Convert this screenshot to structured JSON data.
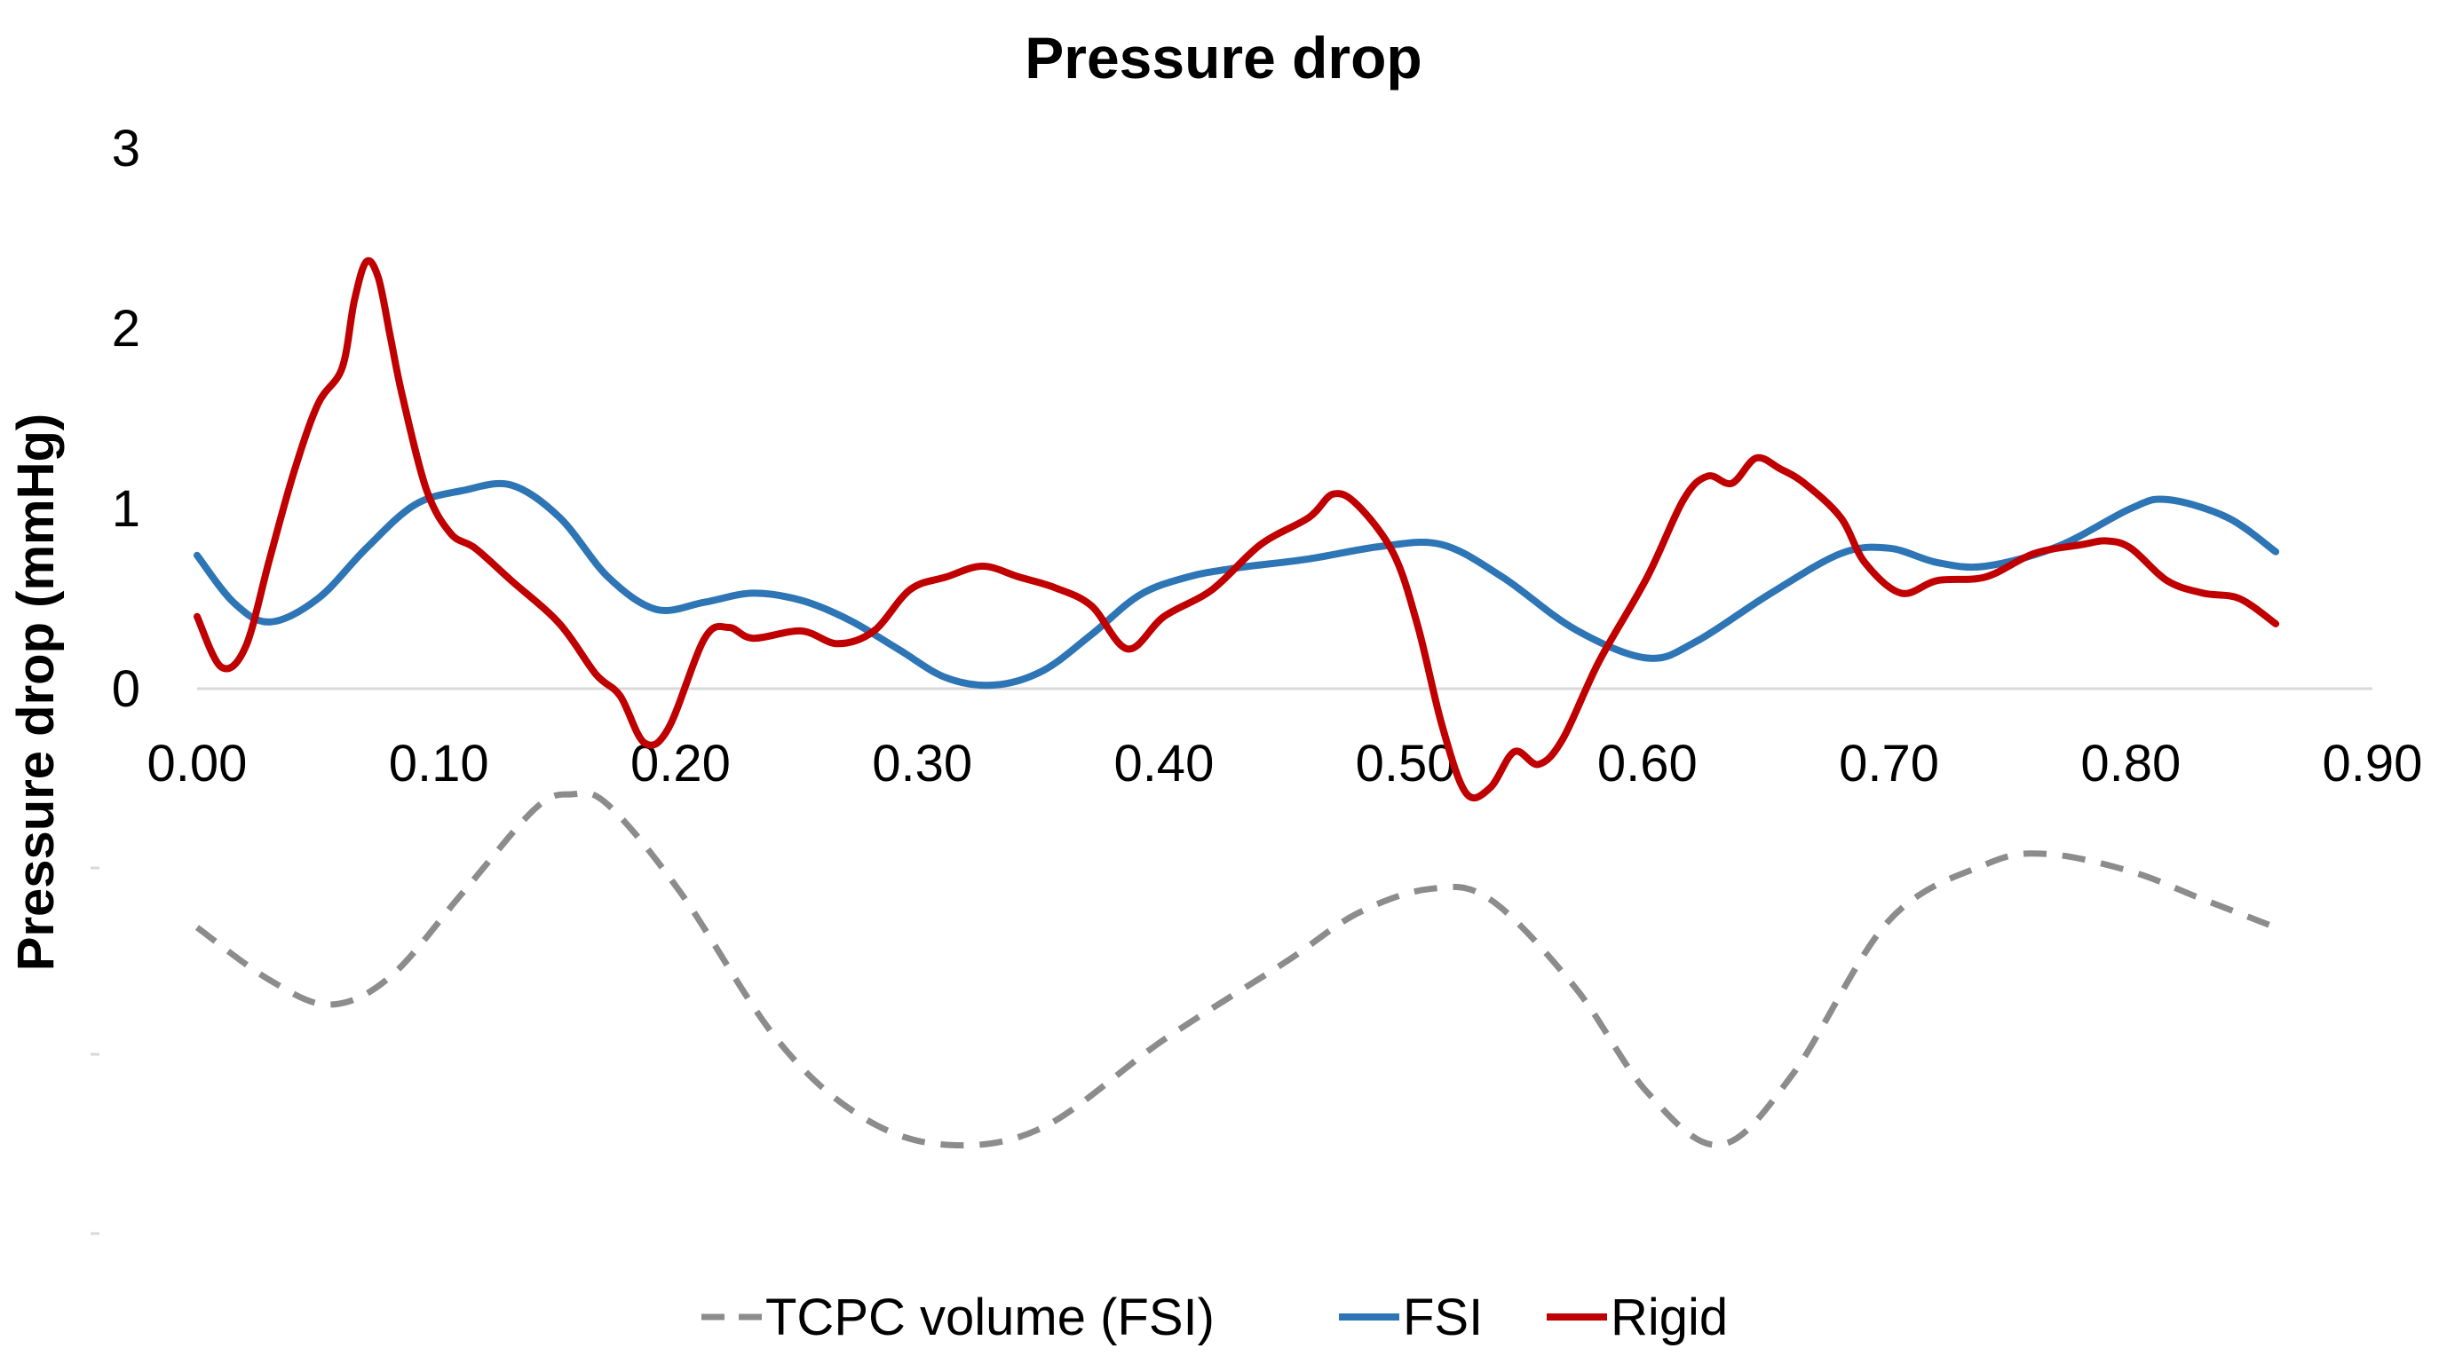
{
  "chart_data": {
    "type": "line",
    "title": "Pressure drop",
    "xlabel": "",
    "ylabel": "Pressure drop (mmHg)",
    "xlim": [
      0,
      0.9
    ],
    "ylim": [
      0,
      3
    ],
    "x_ticks": [
      "0.00",
      "0.10",
      "0.20",
      "0.30",
      "0.40",
      "0.50",
      "0.60",
      "0.70",
      "0.80",
      "0.90"
    ],
    "y_ticks": [
      "0",
      "1",
      "2",
      "3"
    ],
    "grid": false,
    "legend_position": "bottom",
    "colors": {
      "fsi": "#2e75b6",
      "rigid": "#c00000",
      "volume": "#8c8c8c"
    },
    "series": [
      {
        "name": "TCPC volume (FSI)",
        "style": "dashed",
        "axis": "secondary (no labels)",
        "relative_range": [
          0,
          1
        ],
        "points": [
          [
            0.0,
            0.62
          ],
          [
            0.03,
            0.47
          ],
          [
            0.055,
            0.4
          ],
          [
            0.08,
            0.48
          ],
          [
            0.11,
            0.72
          ],
          [
            0.14,
            0.96
          ],
          [
            0.155,
            1.0
          ],
          [
            0.17,
            0.97
          ],
          [
            0.2,
            0.72
          ],
          [
            0.24,
            0.3
          ],
          [
            0.275,
            0.08
          ],
          [
            0.31,
            0.0
          ],
          [
            0.35,
            0.05
          ],
          [
            0.4,
            0.3
          ],
          [
            0.45,
            0.52
          ],
          [
            0.48,
            0.66
          ],
          [
            0.51,
            0.73
          ],
          [
            0.535,
            0.7
          ],
          [
            0.57,
            0.45
          ],
          [
            0.6,
            0.15
          ],
          [
            0.63,
            0.0
          ],
          [
            0.66,
            0.2
          ],
          [
            0.7,
            0.64
          ],
          [
            0.74,
            0.8
          ],
          [
            0.765,
            0.83
          ],
          [
            0.8,
            0.78
          ],
          [
            0.83,
            0.7
          ],
          [
            0.86,
            0.62
          ]
        ]
      },
      {
        "name": "FSI",
        "style": "solid",
        "points": [
          [
            0.0,
            0.74
          ],
          [
            0.015,
            0.48
          ],
          [
            0.03,
            0.37
          ],
          [
            0.05,
            0.5
          ],
          [
            0.07,
            0.78
          ],
          [
            0.09,
            1.02
          ],
          [
            0.11,
            1.1
          ],
          [
            0.13,
            1.13
          ],
          [
            0.15,
            0.95
          ],
          [
            0.17,
            0.62
          ],
          [
            0.19,
            0.44
          ],
          [
            0.21,
            0.48
          ],
          [
            0.23,
            0.53
          ],
          [
            0.25,
            0.49
          ],
          [
            0.27,
            0.38
          ],
          [
            0.29,
            0.22
          ],
          [
            0.31,
            0.06
          ],
          [
            0.33,
            0.02
          ],
          [
            0.35,
            0.1
          ],
          [
            0.37,
            0.3
          ],
          [
            0.39,
            0.52
          ],
          [
            0.41,
            0.62
          ],
          [
            0.43,
            0.67
          ],
          [
            0.46,
            0.72
          ],
          [
            0.49,
            0.79
          ],
          [
            0.515,
            0.8
          ],
          [
            0.54,
            0.62
          ],
          [
            0.57,
            0.33
          ],
          [
            0.6,
            0.17
          ],
          [
            0.62,
            0.26
          ],
          [
            0.65,
            0.52
          ],
          [
            0.68,
            0.75
          ],
          [
            0.7,
            0.78
          ],
          [
            0.72,
            0.7
          ],
          [
            0.74,
            0.68
          ],
          [
            0.77,
            0.79
          ],
          [
            0.8,
            1.0
          ],
          [
            0.815,
            1.05
          ],
          [
            0.84,
            0.95
          ],
          [
            0.86,
            0.76
          ]
        ]
      },
      {
        "name": "Rigid",
        "style": "solid",
        "points": [
          [
            0.0,
            0.4
          ],
          [
            0.01,
            0.12
          ],
          [
            0.02,
            0.23
          ],
          [
            0.03,
            0.72
          ],
          [
            0.04,
            1.2
          ],
          [
            0.05,
            1.58
          ],
          [
            0.06,
            1.78
          ],
          [
            0.065,
            2.15
          ],
          [
            0.07,
            2.37
          ],
          [
            0.075,
            2.28
          ],
          [
            0.08,
            1.95
          ],
          [
            0.085,
            1.62
          ],
          [
            0.095,
            1.1
          ],
          [
            0.105,
            0.86
          ],
          [
            0.115,
            0.78
          ],
          [
            0.13,
            0.6
          ],
          [
            0.15,
            0.36
          ],
          [
            0.165,
            0.08
          ],
          [
            0.175,
            -0.04
          ],
          [
            0.185,
            -0.3
          ],
          [
            0.195,
            -0.22
          ],
          [
            0.21,
            0.28
          ],
          [
            0.22,
            0.34
          ],
          [
            0.23,
            0.28
          ],
          [
            0.25,
            0.32
          ],
          [
            0.265,
            0.25
          ],
          [
            0.28,
            0.32
          ],
          [
            0.295,
            0.55
          ],
          [
            0.31,
            0.62
          ],
          [
            0.325,
            0.68
          ],
          [
            0.34,
            0.62
          ],
          [
            0.355,
            0.56
          ],
          [
            0.37,
            0.46
          ],
          [
            0.385,
            0.22
          ],
          [
            0.4,
            0.4
          ],
          [
            0.42,
            0.55
          ],
          [
            0.44,
            0.8
          ],
          [
            0.46,
            0.95
          ],
          [
            0.47,
            1.08
          ],
          [
            0.48,
            1.02
          ],
          [
            0.495,
            0.75
          ],
          [
            0.505,
            0.35
          ],
          [
            0.515,
            -0.2
          ],
          [
            0.525,
            -0.58
          ],
          [
            0.535,
            -0.55
          ],
          [
            0.545,
            -0.35
          ],
          [
            0.555,
            -0.42
          ],
          [
            0.565,
            -0.28
          ],
          [
            0.58,
            0.15
          ],
          [
            0.6,
            0.62
          ],
          [
            0.615,
            1.05
          ],
          [
            0.625,
            1.18
          ],
          [
            0.635,
            1.14
          ],
          [
            0.645,
            1.28
          ],
          [
            0.655,
            1.22
          ],
          [
            0.665,
            1.14
          ],
          [
            0.68,
            0.95
          ],
          [
            0.69,
            0.7
          ],
          [
            0.705,
            0.53
          ],
          [
            0.72,
            0.6
          ],
          [
            0.74,
            0.62
          ],
          [
            0.76,
            0.75
          ],
          [
            0.78,
            0.8
          ],
          [
            0.79,
            0.82
          ],
          [
            0.8,
            0.78
          ],
          [
            0.815,
            0.6
          ],
          [
            0.83,
            0.53
          ],
          [
            0.845,
            0.5
          ],
          [
            0.86,
            0.36
          ]
        ]
      }
    ]
  }
}
